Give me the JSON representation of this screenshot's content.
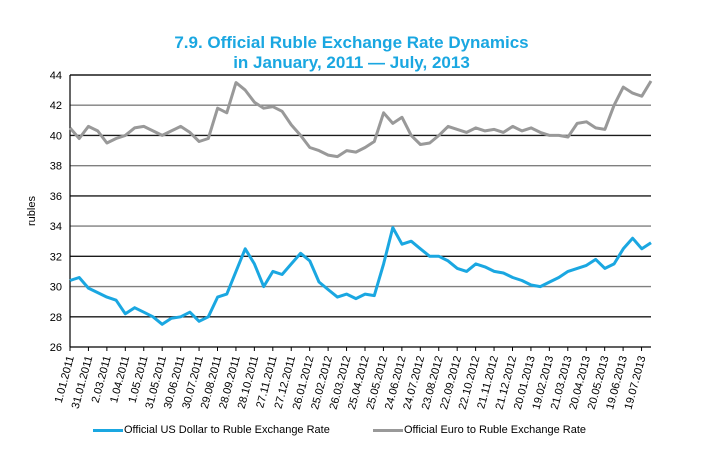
{
  "chart_data": {
    "type": "line",
    "title": "7.9. Official Ruble Exchange Rate Dynamics",
    "subtitle": "in January, 2011 — July, 2013",
    "xlabel": "",
    "ylabel": "rubles",
    "ylim": [
      26,
      44
    ],
    "yticks": [
      26,
      28,
      30,
      32,
      34,
      36,
      38,
      40,
      42,
      44
    ],
    "grid": true,
    "legend_position": "bottom",
    "x_tick_labels": [
      "1.01.2011",
      "31.01.2011",
      "2.03.2011",
      "1.04.2011",
      "1.05.2011",
      "31.05.2011",
      "30.06.2011",
      "30.07.2011",
      "29.08.2011",
      "28.09.2011",
      "28.10.2011",
      "27.11.2011",
      "27.12.2011",
      "26.01.2012",
      "25.02.2012",
      "26.03.2012",
      "25.04.2012",
      "25.05.2012",
      "24.06.2012",
      "24.07.2012",
      "23.08.2012",
      "22.09.2012",
      "22.10.2012",
      "21.11.2012",
      "21.12.2012",
      "20.01.2013",
      "19.02.2013",
      "21.03.2013",
      "20.04.2013",
      "20.05.2013",
      "19.06.2013",
      "19.07.2013"
    ],
    "series": [
      {
        "name": "Official US Dollar to Ruble Exchange Rate",
        "color": "#1aa7e1",
        "values": [
          30.4,
          30.6,
          29.9,
          29.6,
          29.3,
          29.1,
          28.2,
          28.6,
          28.3,
          28.0,
          27.5,
          27.9,
          28.0,
          28.3,
          27.7,
          28.0,
          29.3,
          29.5,
          31.0,
          32.5,
          31.5,
          30.0,
          31.0,
          30.8,
          31.5,
          32.2,
          31.7,
          30.3,
          29.8,
          29.3,
          29.5,
          29.2,
          29.5,
          29.4,
          31.5,
          33.9,
          32.8,
          33.0,
          32.5,
          32.0,
          32.0,
          31.7,
          31.2,
          31.0,
          31.5,
          31.3,
          31.0,
          30.9,
          30.6,
          30.4,
          30.1,
          30.0,
          30.3,
          30.6,
          31.0,
          31.2,
          31.4,
          31.8,
          31.2,
          31.5,
          32.5,
          33.2,
          32.5,
          32.9
        ]
      },
      {
        "name": "Official Euro to Ruble Exchange Rate",
        "color": "#999999",
        "values": [
          40.5,
          39.8,
          40.6,
          40.3,
          39.5,
          39.8,
          40.0,
          40.5,
          40.6,
          40.3,
          40.0,
          40.3,
          40.6,
          40.2,
          39.6,
          39.8,
          41.8,
          41.5,
          43.5,
          43.0,
          42.2,
          41.8,
          41.9,
          41.6,
          40.7,
          40.0,
          39.2,
          39.0,
          38.7,
          38.6,
          39.0,
          38.9,
          39.2,
          39.6,
          41.5,
          40.8,
          41.2,
          40.0,
          39.4,
          39.5,
          40.0,
          40.6,
          40.4,
          40.2,
          40.5,
          40.3,
          40.4,
          40.2,
          40.6,
          40.3,
          40.5,
          40.2,
          40.0,
          40.0,
          39.9,
          40.8,
          40.9,
          40.5,
          40.4,
          42.0,
          43.2,
          42.8,
          42.6,
          43.6
        ]
      }
    ]
  }
}
